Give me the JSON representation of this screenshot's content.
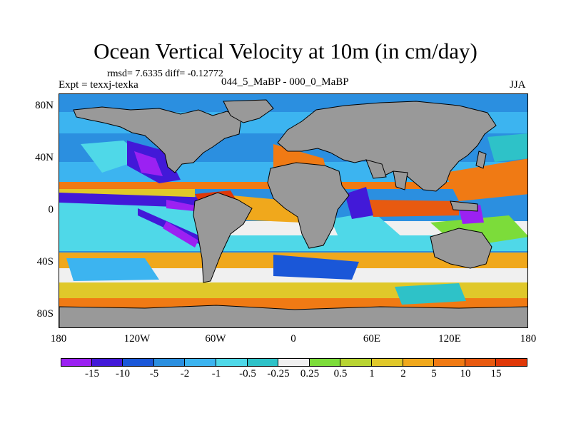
{
  "title": "Ocean Vertical Velocity at 10m (in cm/day)",
  "stats": "rmsd= 7.6335 diff= -0.12772",
  "experiment": "Expt = texxj-texka",
  "period": "044_5_MaBP - 000_0_MaBP",
  "season": "JJA",
  "y_axis": {
    "labels": [
      "80N",
      "40N",
      "0",
      "40S",
      "80S"
    ]
  },
  "x_axis": {
    "labels": [
      "180",
      "120W",
      "60W",
      "0",
      "60E",
      "120E",
      "180"
    ]
  },
  "colorbar": {
    "colors": [
      "#9b21f2",
      "#4219d8",
      "#1a57d8",
      "#2b8fe0",
      "#3cb4f0",
      "#4fd8e8",
      "#2ec2c8",
      "#f0f0f0",
      "#7cdc3a",
      "#b8d432",
      "#e0c82a",
      "#f0a81c",
      "#f07a14",
      "#e85a10",
      "#e03808"
    ],
    "labels": [
      "-15",
      "-10",
      "-5",
      "-2",
      "-1",
      "-0.5",
      "-0.25",
      "0.25",
      "0.5",
      "1",
      "2",
      "5",
      "10",
      "15"
    ]
  },
  "land_color": "#999999",
  "ocean_base_color": "#2b8fe0"
}
